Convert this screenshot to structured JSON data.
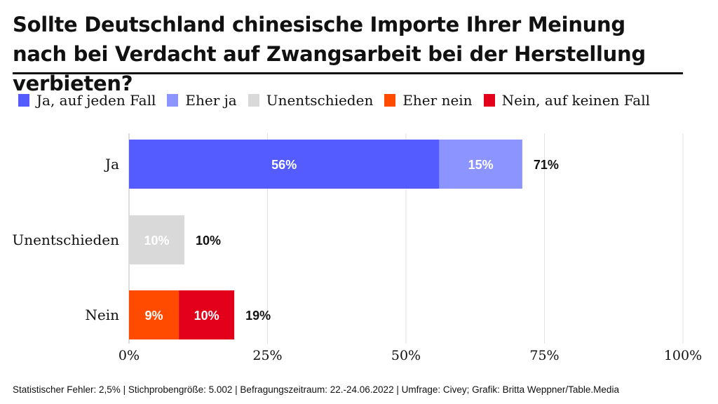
{
  "chart_data": {
    "type": "stacked-bar-horizontal",
    "title": "Sollte Deutschland chinesische Importe Ihrer Meinung nach bei Verdacht auf Zwangsarbeit bei der Herstellung verbieten?",
    "categories": [
      "Ja",
      "Unentschieden",
      "Nein"
    ],
    "series": [
      {
        "name": "Ja, auf jeden Fall",
        "color": "#545cff",
        "values": [
          56,
          0,
          0
        ]
      },
      {
        "name": "Eher ja",
        "color": "#8c94ff",
        "values": [
          15,
          0,
          0
        ]
      },
      {
        "name": "Unentschieden",
        "color": "#d9d9d9",
        "values": [
          0,
          10,
          0
        ]
      },
      {
        "name": "Eher nein",
        "color": "#ff4b00",
        "values": [
          0,
          0,
          9
        ]
      },
      {
        "name": "Nein, auf keinen Fall",
        "color": "#e3001b",
        "values": [
          0,
          0,
          10
        ]
      }
    ],
    "totals": [
      "71%",
      "10%",
      "19%"
    ],
    "xlim": [
      0,
      100
    ],
    "xticks": [
      "0%",
      "25%",
      "50%",
      "75%",
      "100%"
    ],
    "grid": true,
    "legend": "top"
  },
  "footer": "Statistischer Fehler: 2,5% | Stichprobengröße: 5.002 | Befragungszeitraum: 22.-24.06.2022 | Umfrage: Civey; Grafik: Britta Weppner/Table.Media"
}
